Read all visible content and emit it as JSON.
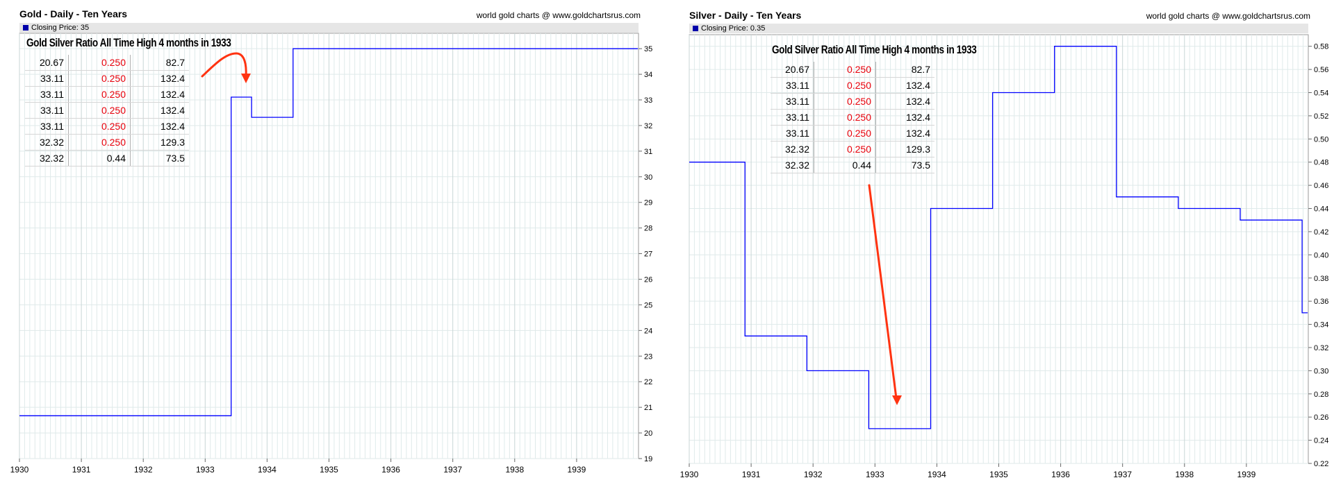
{
  "colors": {
    "line": "#0000ff",
    "arrow": "#ff3311",
    "table_red": "#e8000b",
    "legend_square": "#0000aa",
    "grid": "#dfeaea"
  },
  "left": {
    "title": "Gold - Daily - Ten Years",
    "credit": "world gold charts @ www.goldchartsrus.com",
    "legend": "Closing Price: 35",
    "table_title": "Gold Silver Ratio All Time High 4 months in 1933",
    "table_rows": [
      [
        "20.67",
        "0.250",
        "82.7"
      ],
      [
        "33.11",
        "0.250",
        "132.4"
      ],
      [
        "33.11",
        "0.250",
        "132.4"
      ],
      [
        "33.11",
        "0.250",
        "132.4"
      ],
      [
        "33.11",
        "0.250",
        "132.4"
      ],
      [
        "32.32",
        "0.250",
        "129.3"
      ],
      [
        "32.32",
        "0.44",
        "73.5"
      ]
    ]
  },
  "right": {
    "title": "Silver - Daily - Ten Years",
    "credit": "world gold charts @ www.goldchartsrus.com",
    "legend": "Closing Price: 0.35",
    "table_title": "Gold Silver Ratio All Time High 4 months in 1933",
    "table_rows": [
      [
        "20.67",
        "0.250",
        "82.7"
      ],
      [
        "33.11",
        "0.250",
        "132.4"
      ],
      [
        "33.11",
        "0.250",
        "132.4"
      ],
      [
        "33.11",
        "0.250",
        "132.4"
      ],
      [
        "33.11",
        "0.250",
        "132.4"
      ],
      [
        "32.32",
        "0.250",
        "129.3"
      ],
      [
        "32.32",
        "0.44",
        "73.5"
      ]
    ]
  },
  "chart_data": [
    {
      "type": "line",
      "title": "Gold - Daily - Ten Years",
      "series": [
        {
          "name": "Closing Price",
          "x": [
            1930.0,
            1933.42,
            1933.42,
            1933.75,
            1933.75,
            1934.42,
            1934.42,
            1939.99
          ],
          "y": [
            20.67,
            20.67,
            33.11,
            33.11,
            32.32,
            32.32,
            35.0,
            35.0
          ]
        }
      ],
      "x_ticks": [
        "1930",
        "1931",
        "1932",
        "1933",
        "1934",
        "1935",
        "1936",
        "1937",
        "1938",
        "1939"
      ],
      "y_ticks": [
        "19",
        "20",
        "21",
        "22",
        "23",
        "24",
        "25",
        "26",
        "27",
        "28",
        "29",
        "30",
        "31",
        "32",
        "33",
        "34",
        "35"
      ],
      "xlim": [
        1930,
        1940
      ],
      "ylim": [
        19,
        35.6
      ],
      "y_axis_side": "right",
      "grid": true,
      "legend": "top-left"
    },
    {
      "type": "line",
      "title": "Silver - Daily - Ten Years",
      "series": [
        {
          "name": "Closing Price",
          "x": [
            1930.0,
            1930.9,
            1930.9,
            1931.9,
            1931.9,
            1932.9,
            1932.9,
            1933.9,
            1933.9,
            1934.9,
            1934.9,
            1935.9,
            1935.9,
            1936.9,
            1936.9,
            1937.9,
            1937.9,
            1938.9,
            1938.9,
            1939.9,
            1939.9,
            1939.99
          ],
          "y": [
            0.48,
            0.48,
            0.33,
            0.33,
            0.3,
            0.3,
            0.25,
            0.25,
            0.44,
            0.44,
            0.54,
            0.54,
            0.58,
            0.58,
            0.45,
            0.45,
            0.44,
            0.44,
            0.43,
            0.43,
            0.35,
            0.35
          ]
        }
      ],
      "x_ticks": [
        "1930",
        "1931",
        "1932",
        "1933",
        "1934",
        "1935",
        "1936",
        "1937",
        "1938",
        "1939"
      ],
      "y_ticks": [
        "0.22",
        "0.24",
        "0.26",
        "0.28",
        "0.30",
        "0.32",
        "0.34",
        "0.36",
        "0.38",
        "0.40",
        "0.42",
        "0.44",
        "0.46",
        "0.48",
        "0.50",
        "0.52",
        "0.54",
        "0.56",
        "0.58"
      ],
      "xlim": [
        1930,
        1940
      ],
      "ylim": [
        0.22,
        0.59
      ],
      "y_axis_side": "right",
      "grid": true,
      "legend": "top-left"
    }
  ]
}
